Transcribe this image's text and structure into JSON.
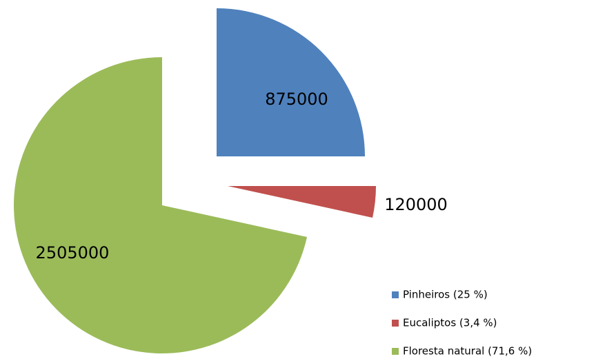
{
  "chart_data": {
    "type": "pie",
    "categories": [
      "Pinheiros (25 %)",
      "Eucaliptos (3,4 %)",
      "Floresta natural (71,6 %)"
    ],
    "values": [
      875000,
      120000,
      2505000
    ],
    "colors": [
      "#4f81bd",
      "#c0504d",
      "#9bbb59"
    ]
  }
}
